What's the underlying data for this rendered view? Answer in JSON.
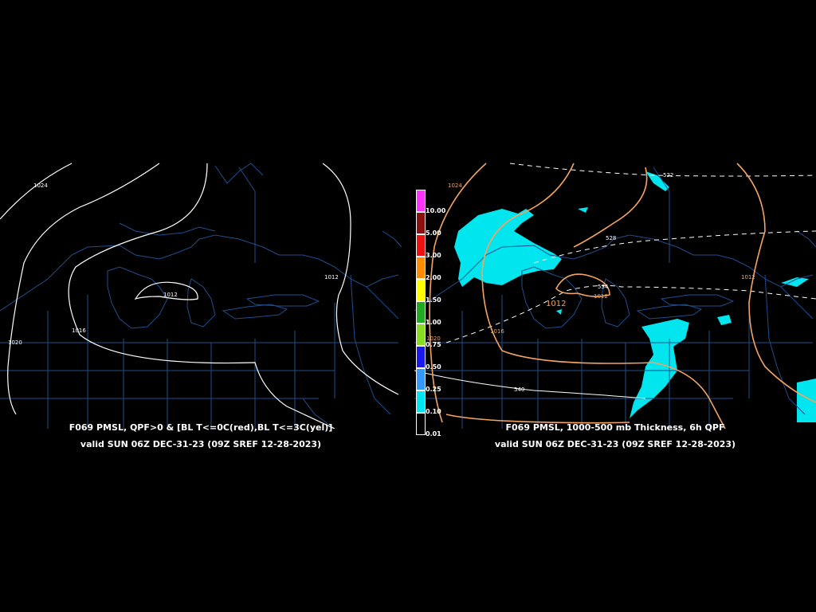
{
  "left_panel": {
    "title": "F069 PMSL, QPF>0 & [BL T<=0C(red),BL T<=3C(yel)]",
    "valid": "valid SUN 06Z DEC-31-23 (09Z SREF 12-28-2023)",
    "isobar_labels": [
      "1024",
      "1012",
      "1012",
      "1016",
      "1020"
    ]
  },
  "right_panel": {
    "title": "F069 PMSL, 1000-500 mb Thickness, 6h QPF",
    "valid": "valid SUN 06Z DEC-31-23 (09Z SREF 12-28-2023)",
    "isobar_labels": [
      "1024",
      "1012",
      "1012",
      "1012",
      "1016",
      "1020"
    ],
    "thickness_labels": [
      "522",
      "528",
      "534",
      "540"
    ]
  },
  "legend": {
    "labels": [
      "10.00",
      "5.00",
      "3.00",
      "2.00",
      "1.50",
      "1.00",
      "0.75",
      "0.50",
      "0.25",
      "0.10",
      "0.01"
    ],
    "colors": [
      "#ff33ff",
      "#8b1010",
      "#ee1111",
      "#ff8c00",
      "#ffff00",
      "#22aa22",
      "#88dd22",
      "#1a1aee",
      "#3399ff",
      "#00e5ee",
      "#000000"
    ]
  },
  "colors": {
    "background": "#000000",
    "map_lines": "#1f4e8c",
    "isobar_left": "#ffffff",
    "isobar_right": "#f4a460",
    "qpf": "#00e5ee"
  }
}
